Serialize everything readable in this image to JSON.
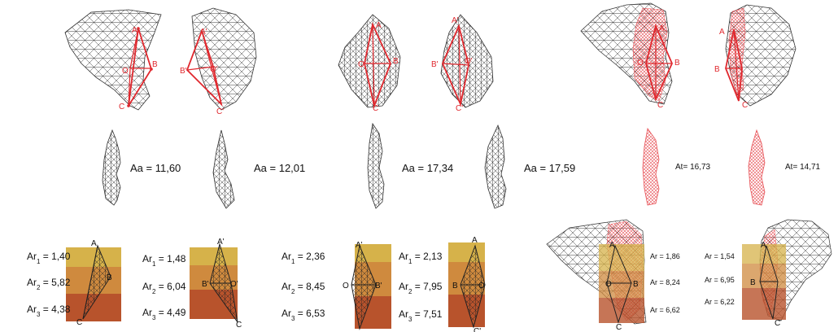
{
  "row2": {
    "aa1": "Aa = 11,60",
    "aa2": "Aa = 12,01",
    "aa3": "Aa = 17,34",
    "aa4": "Aa = 17,59",
    "at1": "At= 16,73",
    "at2": "At= 14,71"
  },
  "row3": {
    "g1": {
      "r1": "Ar",
      "s1": "1",
      "v1": " = 1,40",
      "r2": "Ar",
      "s2": "2",
      "v2": " = 5,82",
      "r3": "Ar",
      "s3": "3",
      "v3": " = 4,38"
    },
    "g2": {
      "r1": "Ar",
      "s1": "1",
      "v1": " = 1,48",
      "r2": "Ar",
      "s2": "2",
      "v2": " = 6,04",
      "r3": "Ar",
      "s3": "3",
      "v3": " = 4,49"
    },
    "g3": {
      "r1": "Ar",
      "s1": "1",
      "v1": " = 2,36",
      "r2": "Ar",
      "s2": "2",
      "v2": " = 8,45",
      "r3": "Ar",
      "s3": "3",
      "v3": " = 6,53"
    },
    "g4": {
      "r1": "Ar",
      "s1": "1",
      "v1": " = 2,13",
      "r2": "Ar",
      "s2": "2",
      "v2": " = 7,95",
      "r3": "Ar",
      "s3": "3",
      "v3": " = 7,51"
    },
    "g5": {
      "v1": "Ar = 1,86",
      "v2": "Ar = 8,24",
      "v3": "Ar = 6,62"
    },
    "g6": {
      "v1": "Ar = 1,54",
      "v2": "Ar = 6,95",
      "v3": "Ar = 6,22"
    }
  },
  "points": {
    "a": "A",
    "b": "B",
    "c": "C",
    "o": "O",
    "a_p": "A'",
    "b_p": "B'",
    "c_p": "C'",
    "o_p": "O'"
  },
  "colors": {
    "band1": "#d6b24a",
    "band2": "#cf8a3e",
    "band3": "#b8532c",
    "red": "#e0282e"
  }
}
